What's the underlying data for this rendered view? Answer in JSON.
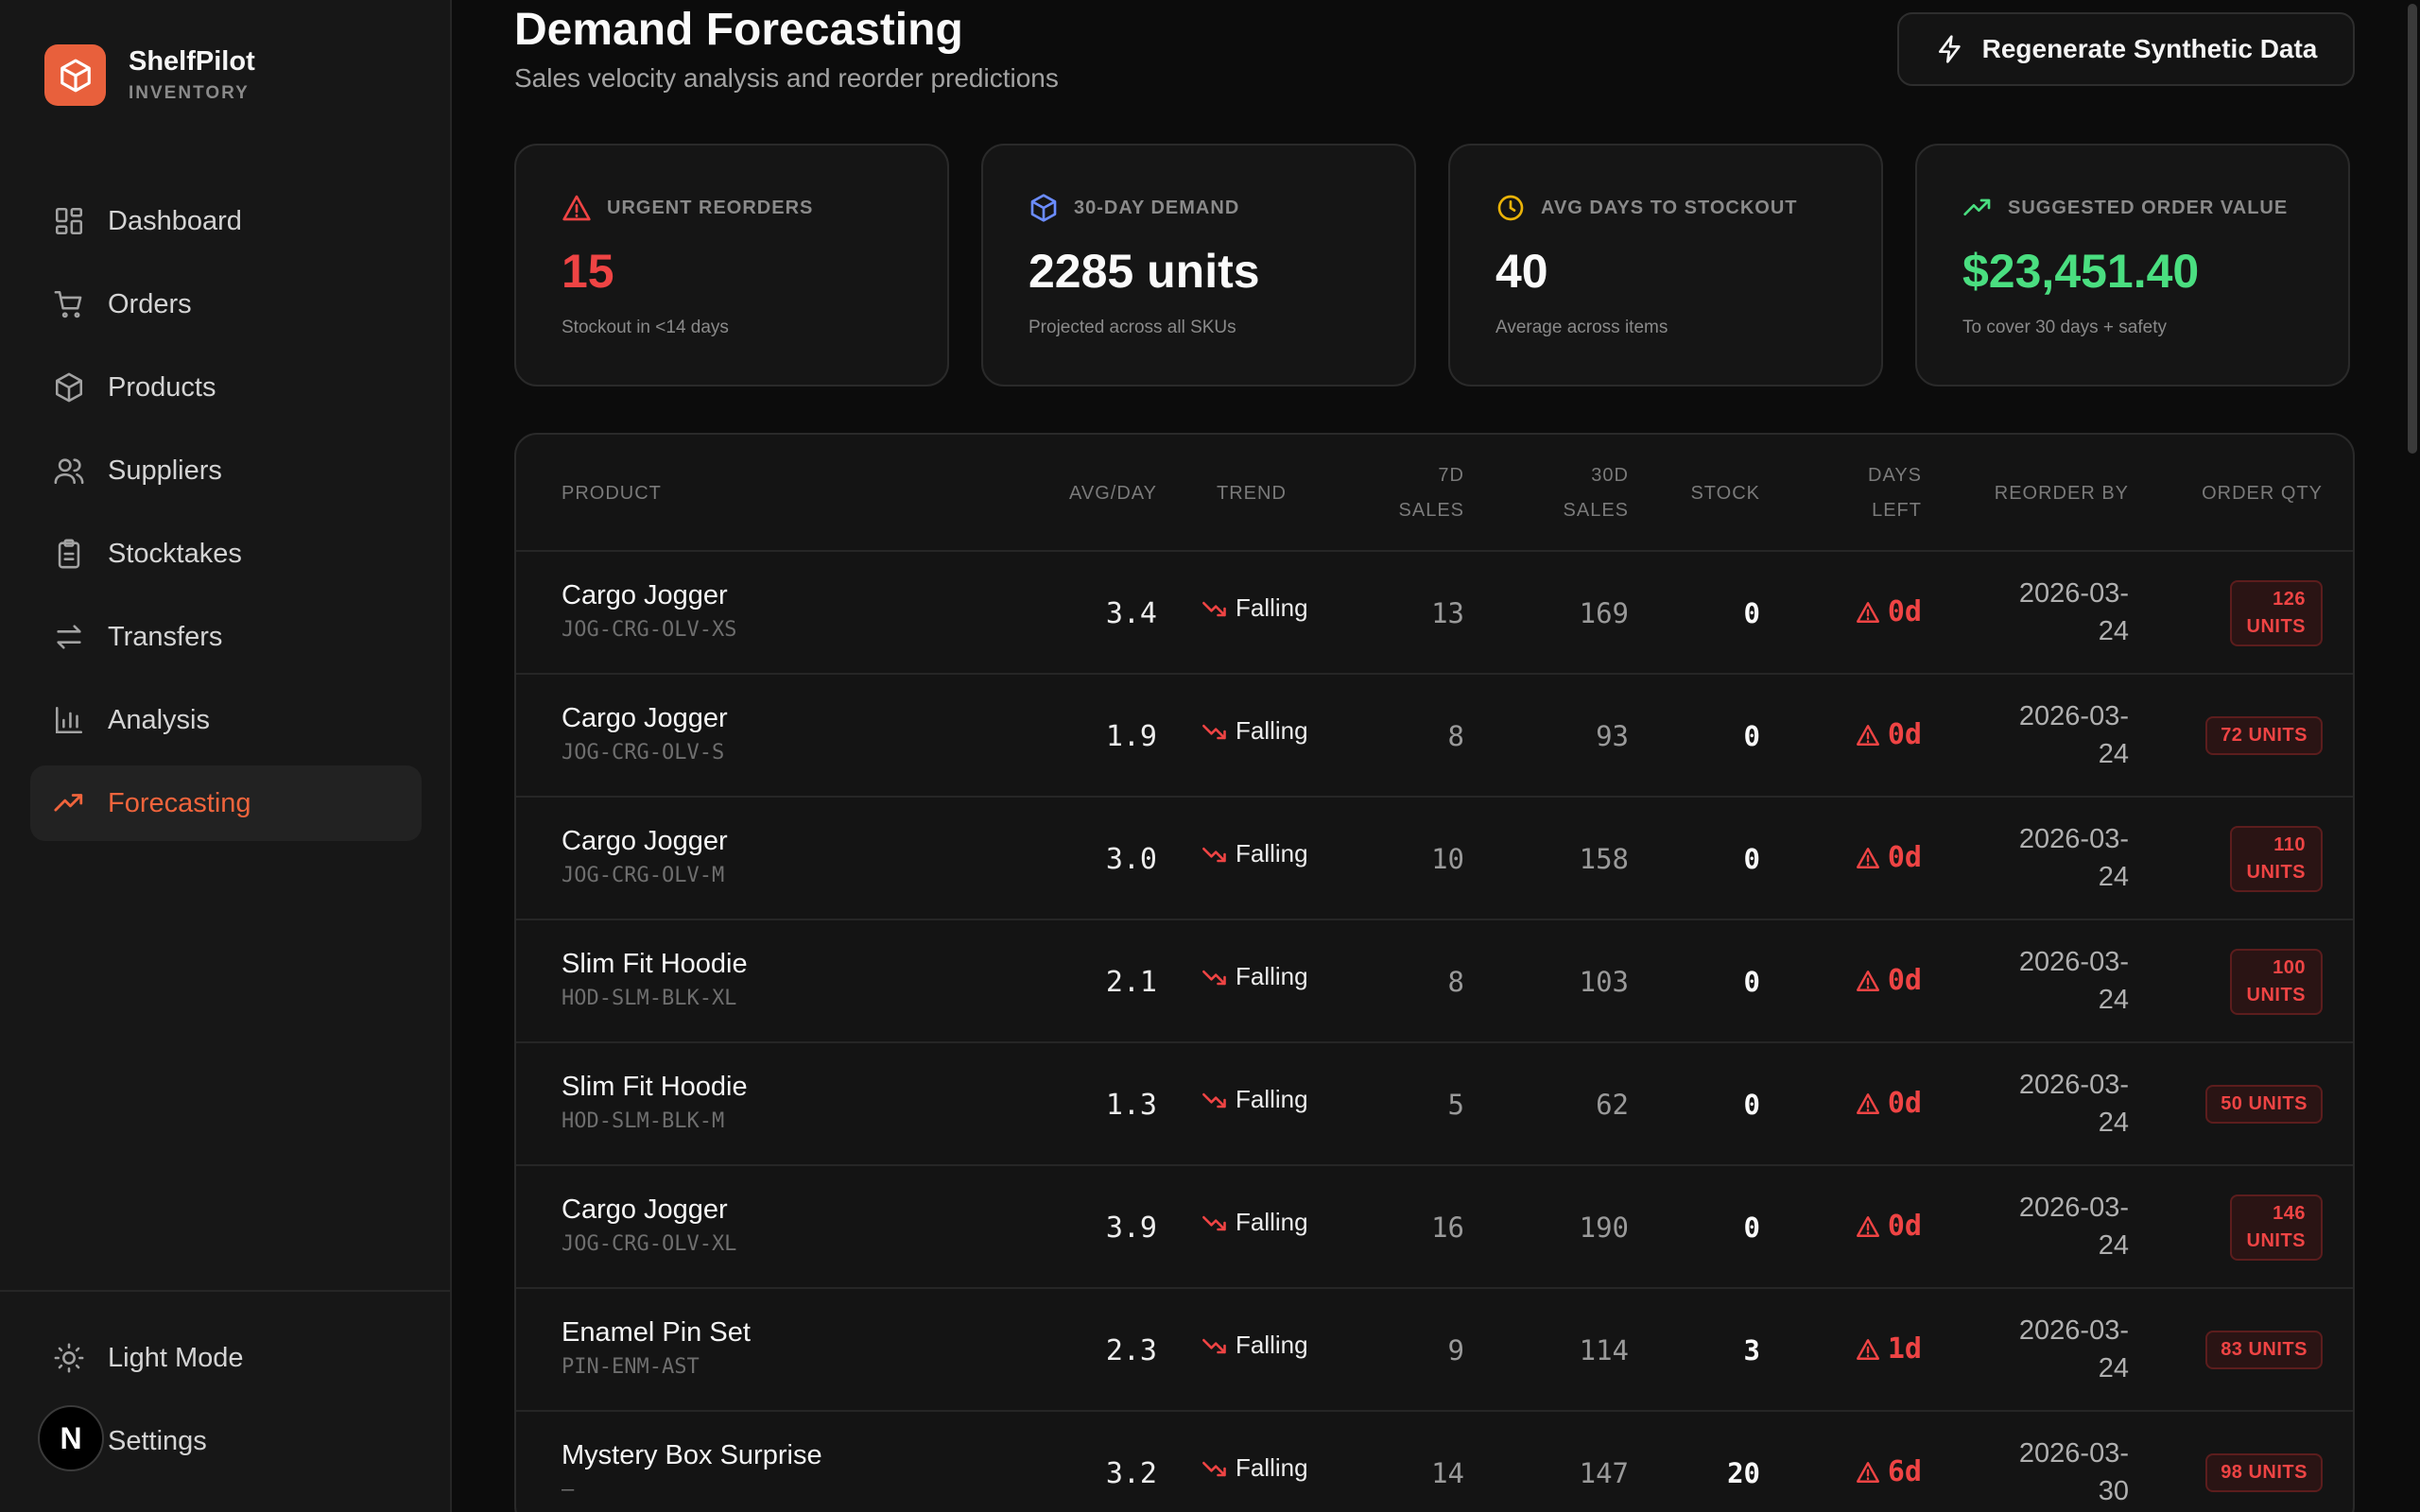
{
  "brand": {
    "name": "ShelfPilot",
    "subtitle": "INVENTORY",
    "logo_color": "#e8603c"
  },
  "nav": [
    {
      "label": "Dashboard",
      "icon": "dashboard-icon",
      "active": false
    },
    {
      "label": "Orders",
      "icon": "cart-icon",
      "active": false
    },
    {
      "label": "Products",
      "icon": "box-icon",
      "active": false
    },
    {
      "label": "Suppliers",
      "icon": "users-icon",
      "active": false
    },
    {
      "label": "Stocktakes",
      "icon": "clipboard-icon",
      "active": false
    },
    {
      "label": "Transfers",
      "icon": "transfer-icon",
      "active": false
    },
    {
      "label": "Analysis",
      "icon": "bar-chart-icon",
      "active": false
    },
    {
      "label": "Forecasting",
      "icon": "trending-up-icon",
      "active": true
    }
  ],
  "sidebar_bottom": {
    "theme_toggle": "Light Mode",
    "settings": "Settings",
    "avatar_letter": "N"
  },
  "header": {
    "title": "Demand Forecasting",
    "subtitle": "Sales velocity analysis and reorder predictions",
    "regenerate_label": "Regenerate Synthetic Data"
  },
  "cards": [
    {
      "label": "URGENT REORDERS",
      "value": "15",
      "note": "Stockout in <14 days",
      "icon": "alert-triangle-icon",
      "value_color": "#ef4444",
      "icon_color": "#ef4444"
    },
    {
      "label": "30-DAY DEMAND",
      "value": "2285 units",
      "note": "Projected across all SKUs",
      "icon": "box-icon",
      "value_color": "#fafafa",
      "icon_color": "#6b8cff"
    },
    {
      "label": "AVG DAYS TO STOCKOUT",
      "value": "40",
      "note": "Average across items",
      "icon": "clock-icon",
      "value_color": "#fafafa",
      "icon_color": "#eab308"
    },
    {
      "label": "SUGGESTED ORDER VALUE",
      "value": "$23,451.40",
      "note": "To cover 30 days + safety",
      "icon": "trending-up-icon",
      "value_color": "#4ade80",
      "icon_color": "#4ade80"
    }
  ],
  "table": {
    "headers": {
      "product": "PRODUCT",
      "avg_day": "AVG/DAY",
      "trend": "TREND",
      "sales_7d_1": "7D",
      "sales_7d_2": "SALES",
      "sales_30d_1": "30D",
      "sales_30d_2": "SALES",
      "stock": "STOCK",
      "days_left_1": "DAYS",
      "days_left_2": "LEFT",
      "reorder_by": "REORDER BY",
      "order_qty": "ORDER QTY"
    },
    "rows": [
      {
        "name": "Cargo Jogger",
        "sku": "JOG-CRG-OLV-XS",
        "avg": "3.4",
        "trend": "Falling",
        "s7": "13",
        "s30": "169",
        "stock": "0",
        "days": "0d",
        "reorder_1": "2026-03-",
        "reorder_2": "24",
        "qty_1": "126",
        "qty_2": "UNITS",
        "qty_single": ""
      },
      {
        "name": "Cargo Jogger",
        "sku": "JOG-CRG-OLV-S",
        "avg": "1.9",
        "trend": "Falling",
        "s7": "8",
        "s30": "93",
        "stock": "0",
        "days": "0d",
        "reorder_1": "2026-03-",
        "reorder_2": "24",
        "qty_1": "",
        "qty_2": "",
        "qty_single": "72 UNITS"
      },
      {
        "name": "Cargo Jogger",
        "sku": "JOG-CRG-OLV-M",
        "avg": "3.0",
        "trend": "Falling",
        "s7": "10",
        "s30": "158",
        "stock": "0",
        "days": "0d",
        "reorder_1": "2026-03-",
        "reorder_2": "24",
        "qty_1": "110",
        "qty_2": "UNITS",
        "qty_single": ""
      },
      {
        "name": "Slim Fit Hoodie",
        "sku": "HOD-SLM-BLK-XL",
        "avg": "2.1",
        "trend": "Falling",
        "s7": "8",
        "s30": "103",
        "stock": "0",
        "days": "0d",
        "reorder_1": "2026-03-",
        "reorder_2": "24",
        "qty_1": "100",
        "qty_2": "UNITS",
        "qty_single": ""
      },
      {
        "name": "Slim Fit Hoodie",
        "sku": "HOD-SLM-BLK-M",
        "avg": "1.3",
        "trend": "Falling",
        "s7": "5",
        "s30": "62",
        "stock": "0",
        "days": "0d",
        "reorder_1": "2026-03-",
        "reorder_2": "24",
        "qty_1": "",
        "qty_2": "",
        "qty_single": "50 UNITS"
      },
      {
        "name": "Cargo Jogger",
        "sku": "JOG-CRG-OLV-XL",
        "avg": "3.9",
        "trend": "Falling",
        "s7": "16",
        "s30": "190",
        "stock": "0",
        "days": "0d",
        "reorder_1": "2026-03-",
        "reorder_2": "24",
        "qty_1": "146",
        "qty_2": "UNITS",
        "qty_single": ""
      },
      {
        "name": "Enamel Pin Set",
        "sku": "PIN-ENM-AST",
        "avg": "2.3",
        "trend": "Falling",
        "s7": "9",
        "s30": "114",
        "stock": "3",
        "days": "1d",
        "reorder_1": "2026-03-",
        "reorder_2": "24",
        "qty_1": "",
        "qty_2": "",
        "qty_single": "83 UNITS"
      },
      {
        "name": "Mystery Box Surprise",
        "sku": "—",
        "avg": "3.2",
        "trend": "Falling",
        "s7": "14",
        "s30": "147",
        "stock": "20",
        "days": "6d",
        "reorder_1": "2026-03-",
        "reorder_2": "30",
        "qty_1": "",
        "qty_2": "",
        "qty_single": "98 UNITS"
      }
    ]
  }
}
